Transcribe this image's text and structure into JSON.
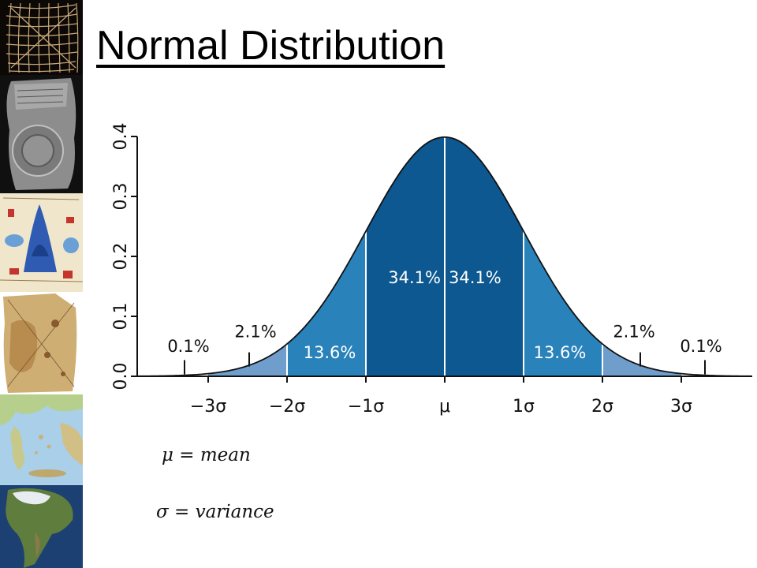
{
  "slide": {
    "title": "Normal Distribution"
  },
  "sidebar": {
    "images": [
      {
        "name": "grid-map-image"
      },
      {
        "name": "babylonian-tablet-map-image"
      },
      {
        "name": "medieval-map-image"
      },
      {
        "name": "piri-reis-map-image"
      },
      {
        "name": "aegean-map-image"
      },
      {
        "name": "north-america-satellite-image"
      }
    ]
  },
  "legend": {
    "mu": "μ = mean",
    "sigma": "σ = variance"
  },
  "chart_data": {
    "type": "area",
    "distribution": "normal",
    "mean": 0,
    "sd": 1,
    "xlim": [
      -3.9,
      3.9
    ],
    "ylim": [
      0,
      0.4
    ],
    "y_ticks": [
      "0.0",
      "0.1",
      "0.2",
      "0.3",
      "0.4"
    ],
    "x_ticks": [
      {
        "value": -3,
        "label": "−3σ"
      },
      {
        "value": -2,
        "label": "−2σ"
      },
      {
        "value": -1,
        "label": "−1σ"
      },
      {
        "value": 0,
        "label": "μ"
      },
      {
        "value": 1,
        "label": "1σ"
      },
      {
        "value": 2,
        "label": "2σ"
      },
      {
        "value": 3,
        "label": "3σ"
      }
    ],
    "bands": [
      {
        "from": -3.9,
        "to": -3,
        "percent": "0.1%",
        "color": "#ffffff"
      },
      {
        "from": -3,
        "to": -2,
        "percent": "2.1%",
        "color": "#6f9ecc"
      },
      {
        "from": -2,
        "to": -1,
        "percent": "13.6%",
        "color": "#2a82bb"
      },
      {
        "from": -1,
        "to": 0,
        "percent": "34.1%",
        "color": "#0d5890"
      },
      {
        "from": 0,
        "to": 1,
        "percent": "34.1%",
        "color": "#0d5890"
      },
      {
        "from": 1,
        "to": 2,
        "percent": "13.6%",
        "color": "#2a82bb"
      },
      {
        "from": 2,
        "to": 3,
        "percent": "2.1%",
        "color": "#6f9ecc"
      },
      {
        "from": 3,
        "to": 3.9,
        "percent": "0.1%",
        "color": "#ffffff"
      }
    ]
  }
}
